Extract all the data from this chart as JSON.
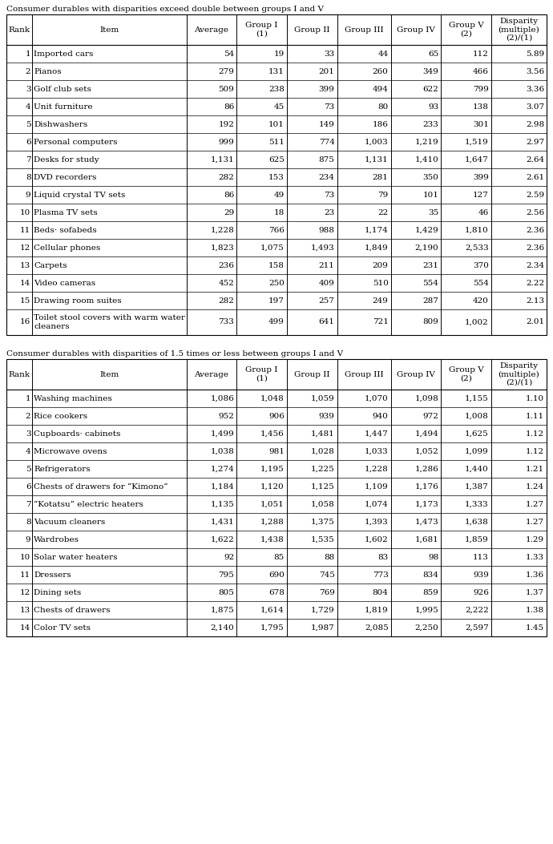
{
  "title1": "Consumer durables with disparities exceed double between groups I and V",
  "title2": "Consumer durables with disparities of 1.5 times or less between groups I and V",
  "headers": [
    "Rank",
    "Item",
    "Average",
    "Group I\n(1)",
    "Group II",
    "Group III",
    "Group IV",
    "Group V\n(2)",
    "Disparity\n(multiple)\n(2)/(1)"
  ],
  "table1": [
    [
      1,
      "Imported cars",
      "54",
      "19",
      "33",
      "44",
      "65",
      "112",
      "5.89"
    ],
    [
      2,
      "Pianos",
      "279",
      "131",
      "201",
      "260",
      "349",
      "466",
      "3.56"
    ],
    [
      3,
      "Golf club sets",
      "509",
      "238",
      "399",
      "494",
      "622",
      "799",
      "3.36"
    ],
    [
      4,
      "Unit furniture",
      "86",
      "45",
      "73",
      "80",
      "93",
      "138",
      "3.07"
    ],
    [
      5,
      "Dishwashers",
      "192",
      "101",
      "149",
      "186",
      "233",
      "301",
      "2.98"
    ],
    [
      6,
      "Personal computers",
      "999",
      "511",
      "774",
      "1,003",
      "1,219",
      "1,519",
      "2.97"
    ],
    [
      7,
      "Desks for study",
      "1,131",
      "625",
      "875",
      "1,131",
      "1,410",
      "1,647",
      "2.64"
    ],
    [
      8,
      "DVD recorders",
      "282",
      "153",
      "234",
      "281",
      "350",
      "399",
      "2.61"
    ],
    [
      9,
      "Liquid crystal TV sets",
      "86",
      "49",
      "73",
      "79",
      "101",
      "127",
      "2.59"
    ],
    [
      10,
      "Plasma TV sets",
      "29",
      "18",
      "23",
      "22",
      "35",
      "46",
      "2.56"
    ],
    [
      11,
      "Beds· sofabeds",
      "1,228",
      "766",
      "988",
      "1,174",
      "1,429",
      "1,810",
      "2.36"
    ],
    [
      12,
      "Cellular phones",
      "1,823",
      "1,075",
      "1,493",
      "1,849",
      "2,190",
      "2,533",
      "2.36"
    ],
    [
      13,
      "Carpets",
      "236",
      "158",
      "211",
      "209",
      "231",
      "370",
      "2.34"
    ],
    [
      14,
      "Video cameras",
      "452",
      "250",
      "409",
      "510",
      "554",
      "554",
      "2.22"
    ],
    [
      15,
      "Drawing room suites",
      "282",
      "197",
      "257",
      "249",
      "287",
      "420",
      "2.13"
    ],
    [
      16,
      "Toilet stool covers with warm water\ncleaners",
      "733",
      "499",
      "641",
      "721",
      "809",
      "1,002",
      "2.01"
    ]
  ],
  "table2": [
    [
      1,
      "Washing machines",
      "1,086",
      "1,048",
      "1,059",
      "1,070",
      "1,098",
      "1,155",
      "1.10"
    ],
    [
      2,
      "Rice cookers",
      "952",
      "906",
      "939",
      "940",
      "972",
      "1,008",
      "1.11"
    ],
    [
      3,
      "Cupboards· cabinets",
      "1,499",
      "1,456",
      "1,481",
      "1,447",
      "1,494",
      "1,625",
      "1.12"
    ],
    [
      4,
      "Microwave ovens",
      "1,038",
      "981",
      "1,028",
      "1,033",
      "1,052",
      "1,099",
      "1.12"
    ],
    [
      5,
      "Refrigerators",
      "1,274",
      "1,195",
      "1,225",
      "1,228",
      "1,286",
      "1,440",
      "1.21"
    ],
    [
      6,
      "Chests of drawers for “Kimono”",
      "1,184",
      "1,120",
      "1,125",
      "1,109",
      "1,176",
      "1,387",
      "1.24"
    ],
    [
      7,
      "“Kotatsu” electric heaters",
      "1,135",
      "1,051",
      "1,058",
      "1,074",
      "1,173",
      "1,333",
      "1.27"
    ],
    [
      8,
      "Vacuum cleaners",
      "1,431",
      "1,288",
      "1,375",
      "1,393",
      "1,473",
      "1,638",
      "1.27"
    ],
    [
      9,
      "Wardrobes",
      "1,622",
      "1,438",
      "1,535",
      "1,602",
      "1,681",
      "1,859",
      "1.29"
    ],
    [
      10,
      "Solar water heaters",
      "92",
      "85",
      "88",
      "83",
      "98",
      "113",
      "1.33"
    ],
    [
      11,
      "Dressers",
      "795",
      "690",
      "745",
      "773",
      "834",
      "939",
      "1.36"
    ],
    [
      12,
      "Dining sets",
      "805",
      "678",
      "769",
      "804",
      "859",
      "926",
      "1.37"
    ],
    [
      13,
      "Chests of drawers",
      "1,875",
      "1,614",
      "1,729",
      "1,819",
      "1,995",
      "2,222",
      "1.38"
    ],
    [
      14,
      "Color TV sets",
      "2,140",
      "1,795",
      "1,987",
      "2,085",
      "2,250",
      "2,597",
      "1.45"
    ]
  ],
  "bg_color": "#ffffff",
  "line_color": "#000000",
  "font_size": 7.5,
  "header_font_size": 7.5,
  "title_font_size": 7.5
}
